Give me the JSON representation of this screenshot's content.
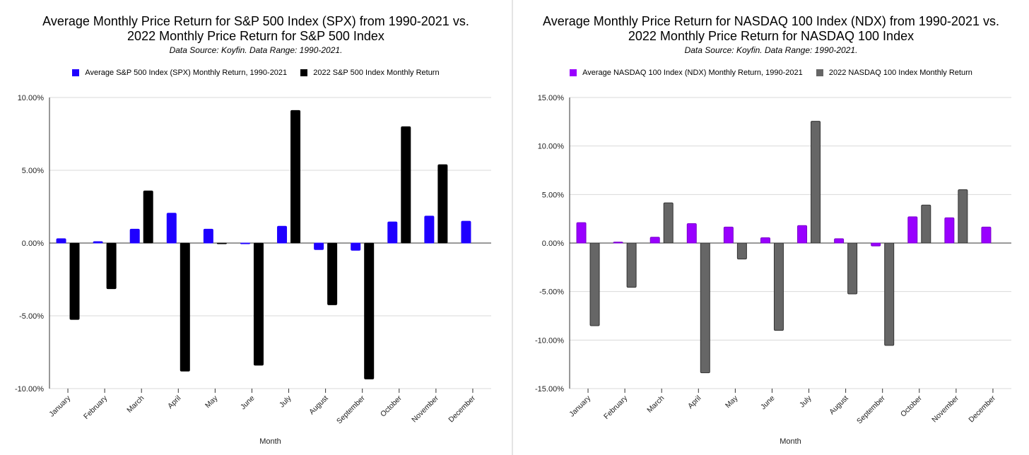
{
  "chart_data": [
    {
      "type": "bar",
      "title": "Average Monthly Price Return for S&P 500 Index (SPX) from 1990-2021 vs. 2022 Monthly Price Return for S&P 500 Index",
      "title_lines": [
        "Average Monthly Price Return for S&P 500 Index (SPX) from 1990-2021 vs.",
        "2022 Monthly Price Return for S&P 500 Index"
      ],
      "subtitle": "Data Source: Koyfin. Data Range: 1990-2021.",
      "xlabel": "Month",
      "ylabel": "",
      "ylim": [
        -10,
        10
      ],
      "yticks": [
        10,
        5,
        0,
        -5,
        -10
      ],
      "ytick_labels": [
        "10.00%",
        "5.00%",
        "0.00%",
        "-5.00%",
        "-10.00%"
      ],
      "grid": true,
      "legend_position": "top-center",
      "categories": [
        "January",
        "February",
        "March",
        "April",
        "May",
        "June",
        "July",
        "August",
        "September",
        "October",
        "November",
        "December"
      ],
      "series": [
        {
          "name": "Average S&P 500 Index (SPX) Monthly Return, 1990-2021",
          "color": "#1f00ff",
          "values": [
            0.3,
            0.1,
            0.95,
            2.05,
            0.95,
            -0.05,
            1.15,
            -0.45,
            -0.5,
            1.45,
            1.85,
            1.5
          ]
        },
        {
          "name": "2022 S&P 500 Index Monthly Return",
          "color": "#000000",
          "values": [
            -5.25,
            -3.14,
            3.58,
            -8.8,
            0.0,
            -8.39,
            9.11,
            -4.24,
            -9.34,
            7.99,
            5.38,
            null
          ]
        }
      ]
    },
    {
      "type": "bar",
      "title": "Average Monthly Price Return for NASDAQ 100 Index (NDX) from 1990-2021 vs. 2022 Monthly Price Return for NASDAQ 100 Index",
      "title_lines": [
        "Average Monthly Price Return for NASDAQ 100 Index (NDX) from 1990-2021 vs.",
        "2022 Monthly Price Return for NASDAQ 100 Index"
      ],
      "subtitle": "Data Source: Koyfin. Data Range: 1990-2021.",
      "xlabel": "Month",
      "ylabel": "",
      "ylim": [
        -15,
        15
      ],
      "yticks": [
        15,
        10,
        5,
        0,
        -5,
        -10,
        -15
      ],
      "ytick_labels": [
        "15.00%",
        "10.00%",
        "5.00%",
        "0.00%",
        "-5.00%",
        "-10.00%",
        "-15.00%"
      ],
      "grid": true,
      "legend_position": "top-center",
      "categories": [
        "January",
        "February",
        "March",
        "April",
        "May",
        "June",
        "July",
        "August",
        "September",
        "October",
        "November",
        "December"
      ],
      "series": [
        {
          "name": "Average NASDAQ 100 Index (NDX) Monthly Return, 1990-2021",
          "color": "#9900ff",
          "values": [
            2.1,
            0.1,
            0.6,
            2.0,
            1.65,
            0.55,
            1.8,
            0.45,
            -0.3,
            2.7,
            2.6,
            1.65
          ]
        },
        {
          "name": "2022 NASDAQ 100 Index Monthly Return",
          "color": "#666666",
          "values": [
            -8.52,
            -4.56,
            4.14,
            -13.37,
            -1.65,
            -9.0,
            12.55,
            -5.24,
            -10.55,
            3.91,
            5.5,
            null
          ]
        }
      ]
    }
  ]
}
